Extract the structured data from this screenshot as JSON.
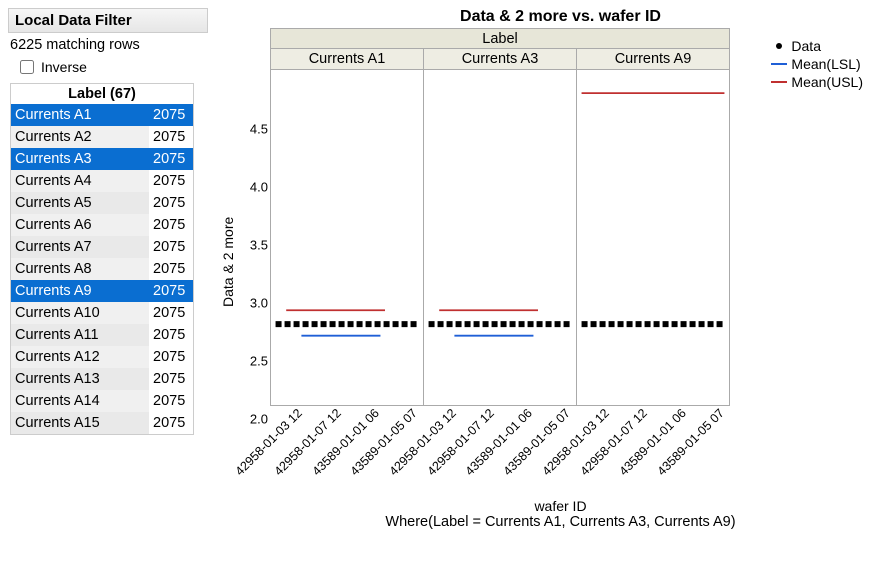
{
  "filter": {
    "title": "Local Data Filter",
    "matching": "6225 matching rows",
    "inverse_label": "Inverse",
    "inverse_checked": false,
    "label_title": "Label (67)",
    "items": [
      {
        "name": "Currents A1",
        "count": "2075",
        "selected": true
      },
      {
        "name": "Currents A2",
        "count": "2075",
        "selected": false
      },
      {
        "name": "Currents A3",
        "count": "2075",
        "selected": true
      },
      {
        "name": "Currents A4",
        "count": "2075",
        "selected": false
      },
      {
        "name": "Currents A5",
        "count": "2075",
        "selected": false
      },
      {
        "name": "Currents A6",
        "count": "2075",
        "selected": false
      },
      {
        "name": "Currents A7",
        "count": "2075",
        "selected": false
      },
      {
        "name": "Currents A8",
        "count": "2075",
        "selected": false
      },
      {
        "name": "Currents A9",
        "count": "2075",
        "selected": true
      },
      {
        "name": "Currents A10",
        "count": "2075",
        "selected": false
      },
      {
        "name": "Currents A11",
        "count": "2075",
        "selected": false
      },
      {
        "name": "Currents A12",
        "count": "2075",
        "selected": false
      },
      {
        "name": "Currents A13",
        "count": "2075",
        "selected": false
      },
      {
        "name": "Currents A14",
        "count": "2075",
        "selected": false
      },
      {
        "name": "Currents A15",
        "count": "2075",
        "selected": false
      }
    ]
  },
  "chart": {
    "title": "Data & 2 more vs. wafer ID",
    "super_header": "Label",
    "ylabel": "Data & 2 more",
    "xlabel": "wafer ID",
    "where": "Where(Label = Currents A1, Currents A3, Currents A9)",
    "ylim": [
      1.8,
      4.7
    ],
    "yticks": [
      "4.5",
      "4.0",
      "3.5",
      "3.0",
      "2.5",
      "2.0"
    ],
    "ytick_vals": [
      4.5,
      4.0,
      3.5,
      3.0,
      2.5,
      2.0
    ],
    "panel_labels": [
      "Currents A1",
      "Currents A3",
      "Currents A9"
    ],
    "xticks": [
      "42958-01-03 12",
      "42958-01-07 12",
      "43589-01-01 06",
      "43589-01-05 07"
    ],
    "data_color": "#000000",
    "lsl_color": "#1f5fd6",
    "usl_color": "#c03030",
    "panels": [
      {
        "lsl": 2.4,
        "usl": 2.62,
        "data_y": 2.5,
        "lsl_x": [
          0.2,
          0.72
        ],
        "usl_x": [
          0.1,
          0.75
        ]
      },
      {
        "lsl": 2.4,
        "usl": 2.62,
        "data_y": 2.5,
        "lsl_x": [
          0.2,
          0.72
        ],
        "usl_x": [
          0.1,
          0.75
        ]
      },
      {
        "lsl": null,
        "usl": 4.5,
        "data_y": 2.5,
        "lsl_x": null,
        "usl_x": [
          0.03,
          0.97
        ]
      }
    ],
    "legend": [
      {
        "type": "dot",
        "label": "Data",
        "color": "#000000"
      },
      {
        "type": "line",
        "label": "Mean(LSL)",
        "color": "#1f5fd6"
      },
      {
        "type": "line",
        "label": "Mean(USL)",
        "color": "#c03030"
      }
    ]
  }
}
